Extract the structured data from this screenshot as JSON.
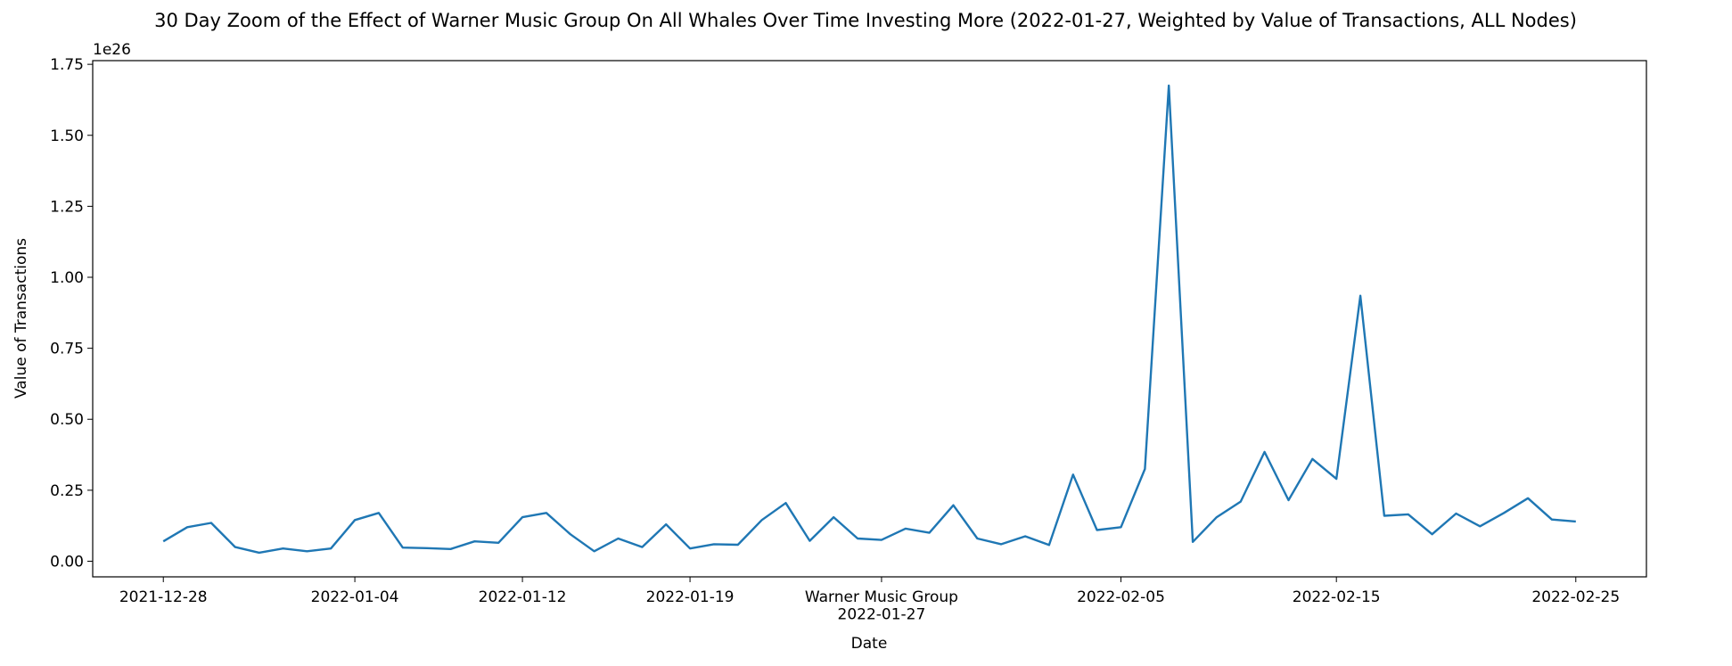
{
  "chart_data": {
    "type": "line",
    "title": "30 Day Zoom of the Effect of Warner Music Group On All Whales Over Time Investing More (2022-01-27, Weighted by Value of Transactions, ALL Nodes)",
    "x_label": "Date",
    "y_label": "Value of Transactions",
    "y_offset_label": "1e26",
    "categories": [
      "2021-12-28",
      null,
      null,
      null,
      null,
      null,
      null,
      null,
      "2022-01-04",
      null,
      null,
      null,
      null,
      null,
      null,
      "2022-01-12",
      null,
      null,
      null,
      null,
      null,
      null,
      "2022-01-19",
      null,
      null,
      null,
      null,
      null,
      null,
      null,
      "Warner Music Group\n2022-01-27",
      null,
      null,
      null,
      null,
      null,
      null,
      null,
      null,
      null,
      "2022-02-05",
      null,
      null,
      null,
      null,
      null,
      null,
      null,
      null,
      "2022-02-15",
      null,
      null,
      null,
      null,
      null,
      null,
      null,
      null,
      null,
      "2022-02-25"
    ],
    "series": [
      {
        "name": "Value of Transactions",
        "color": "#1f77b4",
        "values": [
          0.07,
          0.12,
          0.135,
          0.05,
          0.03,
          0.045,
          0.035,
          0.045,
          0.145,
          0.17,
          0.048,
          0.046,
          0.043,
          0.07,
          0.065,
          0.155,
          0.17,
          0.095,
          0.035,
          0.08,
          0.05,
          0.13,
          0.045,
          0.06,
          0.058,
          0.145,
          0.205,
          0.072,
          0.155,
          0.08,
          0.075,
          0.115,
          0.1,
          0.197,
          0.08,
          0.06,
          0.088,
          0.057,
          0.305,
          0.11,
          0.12,
          0.325,
          1.675,
          0.068,
          0.155,
          0.21,
          0.385,
          0.215,
          0.36,
          0.29,
          0.935,
          0.16,
          0.165,
          0.095,
          0.168,
          0.123,
          0.17,
          0.222,
          0.147,
          0.14
        ]
      }
    ],
    "ylim": [
      -0.055,
      1.763
    ],
    "yticks": [
      {
        "value": 0,
        "label": "0.00"
      },
      {
        "value": 0.25,
        "label": "0.25"
      },
      {
        "value": 0.5,
        "label": "0.50"
      },
      {
        "value": 0.75,
        "label": "0.75"
      },
      {
        "value": 1,
        "label": "1.00"
      },
      {
        "value": 1.25,
        "label": "1.25"
      },
      {
        "value": 1.5,
        "label": "1.50"
      },
      {
        "value": 1.75,
        "label": "1.75"
      }
    ],
    "grid": false
  }
}
